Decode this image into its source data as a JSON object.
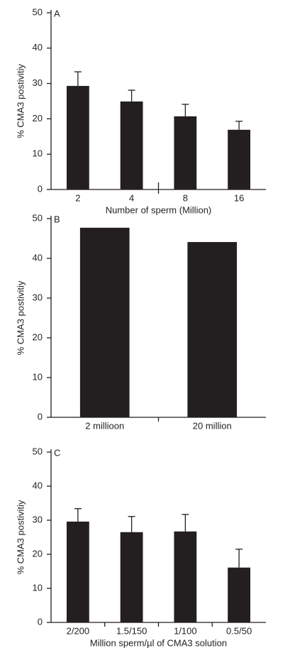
{
  "chart_data": [
    {
      "type": "bar",
      "panel_label": "A",
      "ylabel": "% CMA3 postivitiy",
      "xlabel": "Number of sperm (Million)",
      "categories": [
        "2",
        "4",
        "8",
        "16"
      ],
      "values": [
        29.3,
        24.9,
        20.7,
        16.9
      ],
      "errors": [
        4.0,
        3.2,
        3.4,
        2.4
      ],
      "color": "#231f20",
      "ylim": [
        0,
        50
      ],
      "yticks": [
        0,
        10,
        20,
        30,
        40,
        50
      ]
    },
    {
      "type": "bar",
      "panel_label": "B",
      "ylabel": "% CMA3 postivitiy",
      "categories": [
        "2 millioon",
        "20 million"
      ],
      "values": [
        47.7,
        44.1
      ],
      "color": "#231f20",
      "ylim": [
        0,
        50
      ],
      "yticks": [
        0,
        10,
        20,
        30,
        40,
        50
      ]
    },
    {
      "type": "bar",
      "panel_label": "C",
      "ylabel": "% CMA3 postivitiy",
      "xlabel": "Million sperm/µl of CMA3 solution",
      "categories": [
        "2/200",
        "1.5/150",
        "1/100",
        "0.5/50"
      ],
      "values": [
        29.6,
        26.5,
        26.7,
        16.1
      ],
      "errors": [
        3.8,
        4.6,
        5.0,
        5.4
      ],
      "color": "#231f20",
      "ylim": [
        0,
        50
      ],
      "yticks": [
        0,
        10,
        20,
        30,
        40,
        50
      ]
    }
  ]
}
